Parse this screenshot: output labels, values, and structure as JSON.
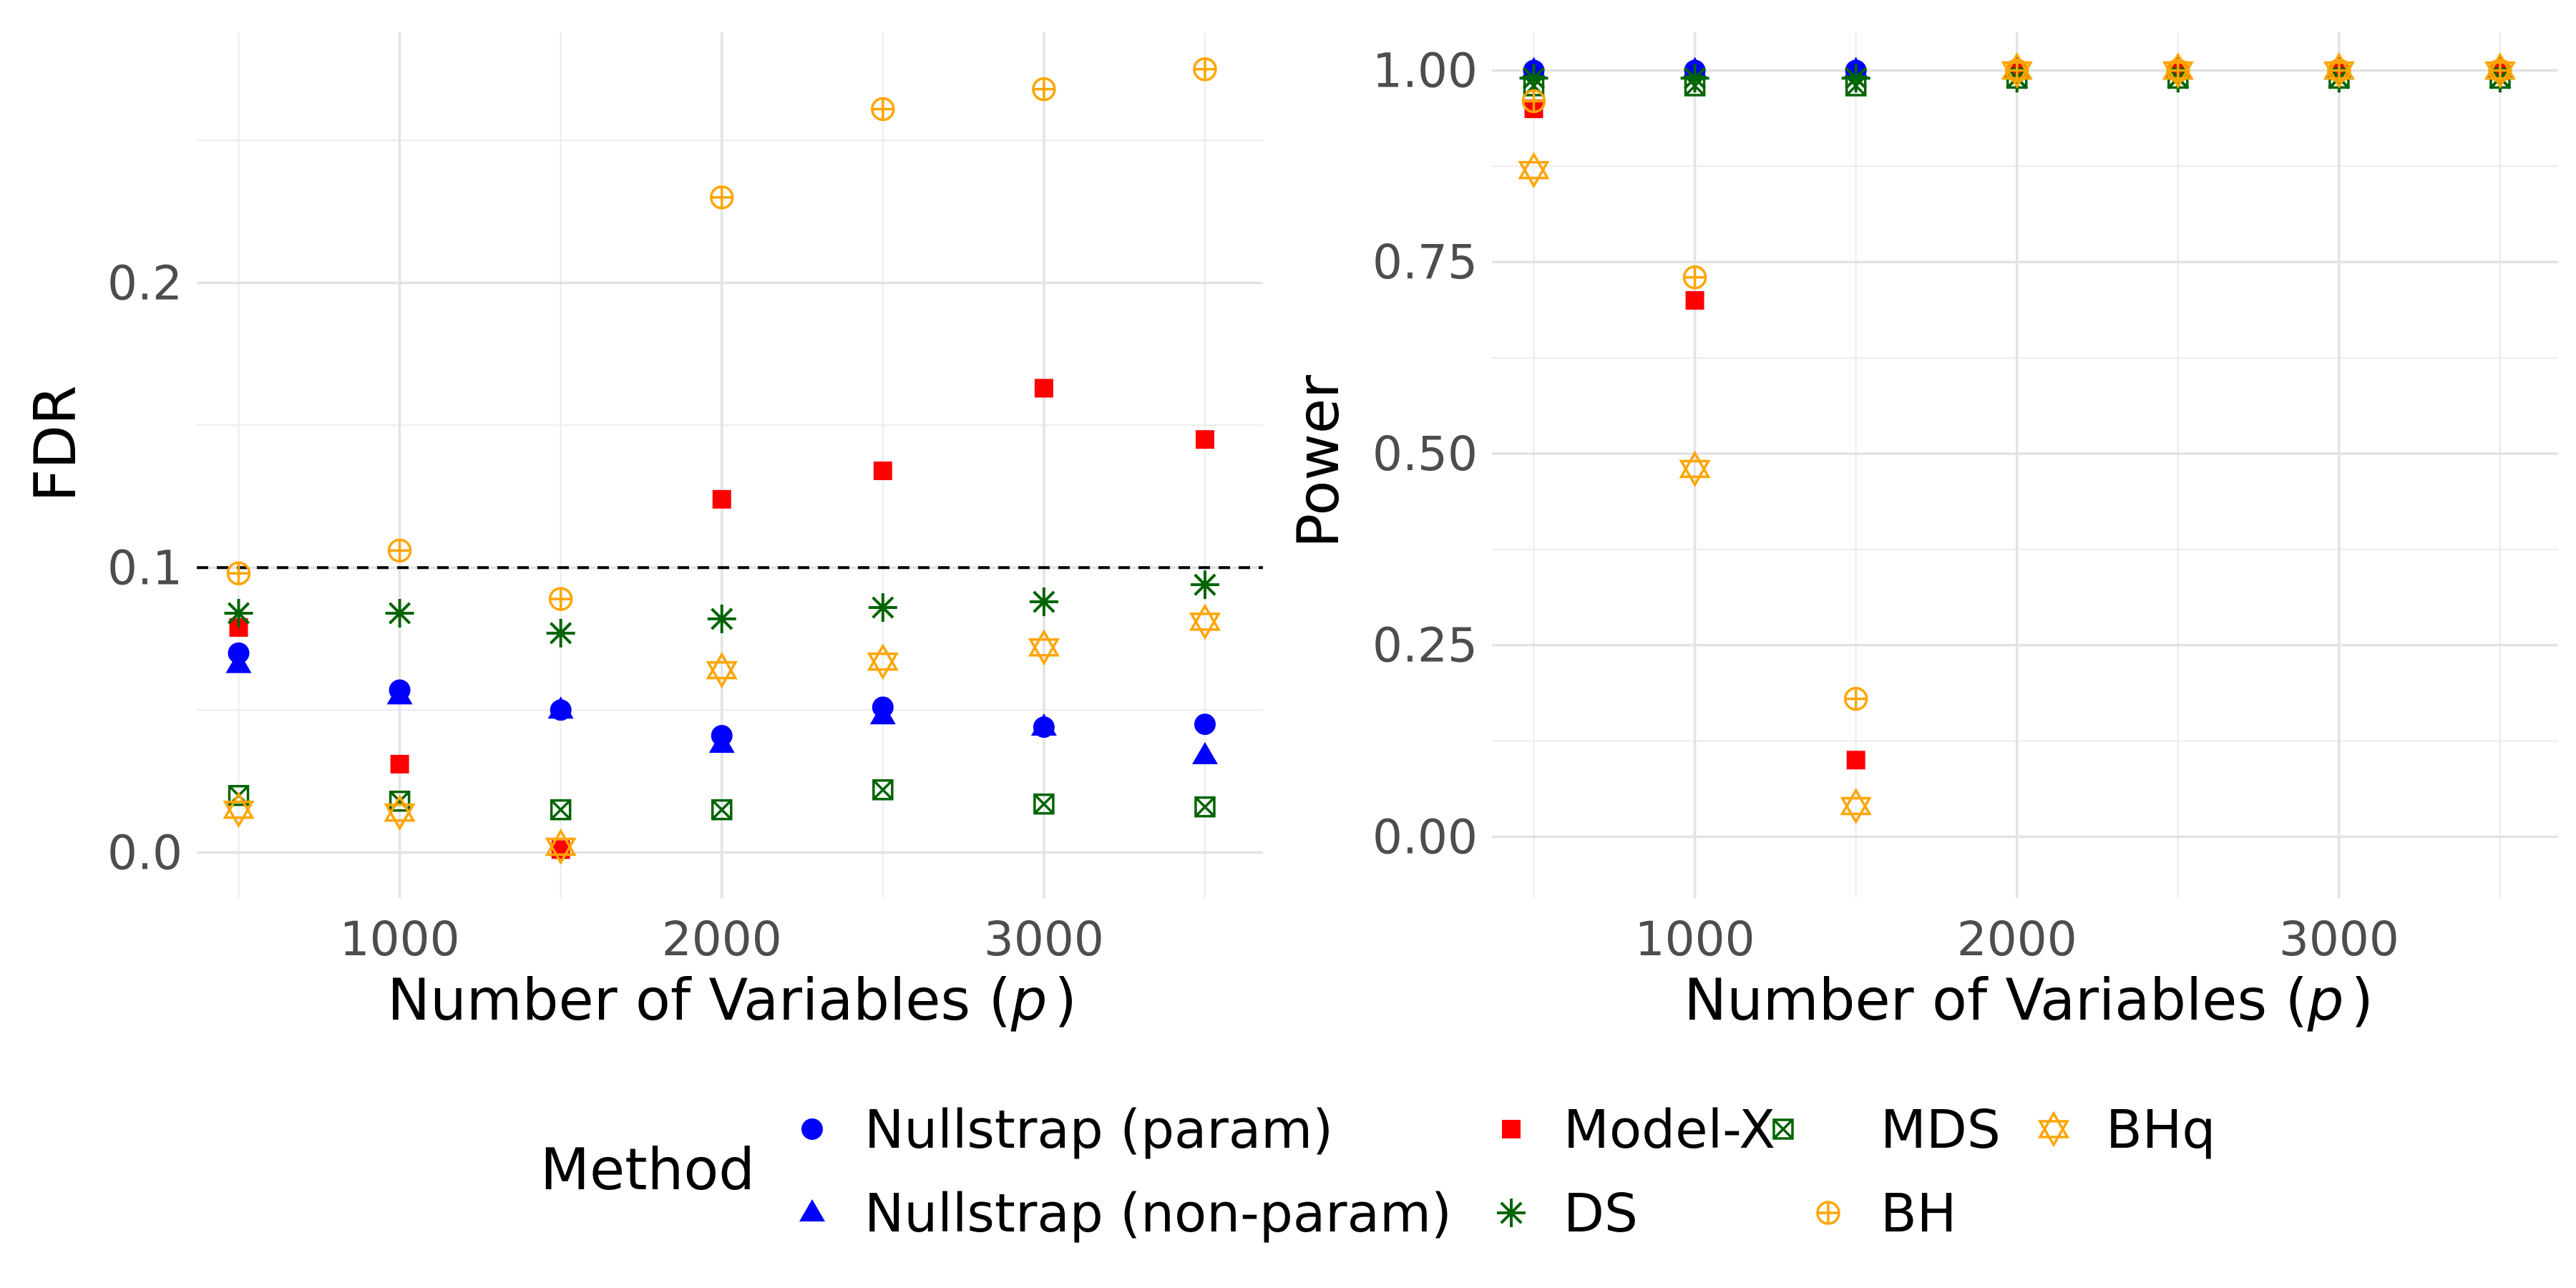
{
  "chart_data": [
    {
      "type": "scatter",
      "panel": "left",
      "xlabel": "Number of Variables (",
      "xlabel_var": "p",
      "xlabel_end": ")",
      "ylabel": "FDR",
      "xlim": [
        370,
        3680
      ],
      "ylim": [
        -0.016,
        0.288
      ],
      "x_ticks": [
        1000,
        2000,
        3000
      ],
      "x_tick_labels": [
        "1000",
        "2000",
        "3000"
      ],
      "y_ticks": [
        0.0,
        0.1,
        0.2
      ],
      "y_tick_labels": [
        "0.0",
        "0.1",
        "0.2"
      ],
      "reference_line": 0.1,
      "x": [
        500,
        1000,
        1500,
        2000,
        2500,
        3000,
        3500
      ],
      "series": [
        {
          "name": "Nullstrap (param)",
          "values": [
            0.07,
            0.057,
            0.05,
            0.041,
            0.051,
            0.044,
            0.045
          ]
        },
        {
          "name": "Nullstrap (non-param)",
          "values": [
            0.066,
            0.055,
            0.05,
            0.038,
            0.048,
            0.044,
            0.034
          ]
        },
        {
          "name": "Model-X",
          "values": [
            0.079,
            0.031,
            0.001,
            0.124,
            0.134,
            0.163,
            0.145
          ]
        },
        {
          "name": "DS",
          "values": [
            0.084,
            0.084,
            0.077,
            0.082,
            0.086,
            0.088,
            0.094
          ]
        },
        {
          "name": "MDS",
          "values": [
            0.02,
            0.018,
            0.015,
            0.015,
            0.022,
            0.017,
            0.016
          ]
        },
        {
          "name": "BH",
          "values": [
            0.098,
            0.106,
            0.089,
            0.23,
            0.261,
            0.268,
            0.275
          ]
        },
        {
          "name": "BHq",
          "values": [
            0.015,
            0.014,
            0.002,
            0.064,
            0.067,
            0.072,
            0.081
          ]
        }
      ]
    },
    {
      "type": "scatter",
      "panel": "right",
      "xlabel": "Number of Variables (",
      "xlabel_var": "p",
      "xlabel_end": ")",
      "ylabel": "Power",
      "xlim": [
        370,
        3680
      ],
      "ylim": [
        -0.08,
        1.05
      ],
      "x_ticks": [
        1000,
        2000,
        3000
      ],
      "x_tick_labels": [
        "1000",
        "2000",
        "3000"
      ],
      "y_ticks": [
        0.0,
        0.25,
        0.5,
        0.75,
        1.0
      ],
      "y_tick_labels": [
        "0.00",
        "0.25",
        "0.50",
        "0.75",
        "1.00"
      ],
      "x": [
        500,
        1000,
        1500,
        2000,
        2500,
        3000,
        3500
      ],
      "series": [
        {
          "name": "Nullstrap (param)",
          "values": [
            1.0,
            1.0,
            1.0,
            1.0,
            1.0,
            1.0,
            1.0
          ]
        },
        {
          "name": "Nullstrap (non-param)",
          "values": [
            1.0,
            1.0,
            1.0,
            1.0,
            1.0,
            1.0,
            1.0
          ]
        },
        {
          "name": "Model-X",
          "values": [
            0.95,
            0.7,
            0.1,
            1.0,
            1.0,
            1.0,
            1.0
          ]
        },
        {
          "name": "DS",
          "values": [
            0.99,
            0.99,
            0.99,
            0.99,
            0.99,
            0.99,
            0.99
          ]
        },
        {
          "name": "MDS",
          "values": [
            0.98,
            0.98,
            0.98,
            0.99,
            0.99,
            0.99,
            0.99
          ]
        },
        {
          "name": "BH",
          "values": [
            0.96,
            0.73,
            0.18,
            1.0,
            1.0,
            1.0,
            1.0
          ]
        },
        {
          "name": "BHq",
          "values": [
            0.87,
            0.48,
            0.04,
            1.0,
            1.0,
            1.0,
            1.0
          ]
        }
      ]
    }
  ],
  "legend": {
    "title": "Method",
    "entries": [
      {
        "name": "Nullstrap (param)",
        "color": "#0000FF",
        "shape": "circle"
      },
      {
        "name": "Nullstrap (non-param)",
        "color": "#0000FF",
        "shape": "triangle"
      },
      {
        "name": "Model-X",
        "color": "#FF0000",
        "shape": "square"
      },
      {
        "name": "DS",
        "color": "#006400",
        "shape": "asterisk"
      },
      {
        "name": "MDS",
        "color": "#006400",
        "shape": "square-cross"
      },
      {
        "name": "BH",
        "color": "#FFA500",
        "shape": "circle-plus"
      },
      {
        "name": "BHq",
        "color": "#FFA500",
        "shape": "star-of-david"
      }
    ]
  }
}
